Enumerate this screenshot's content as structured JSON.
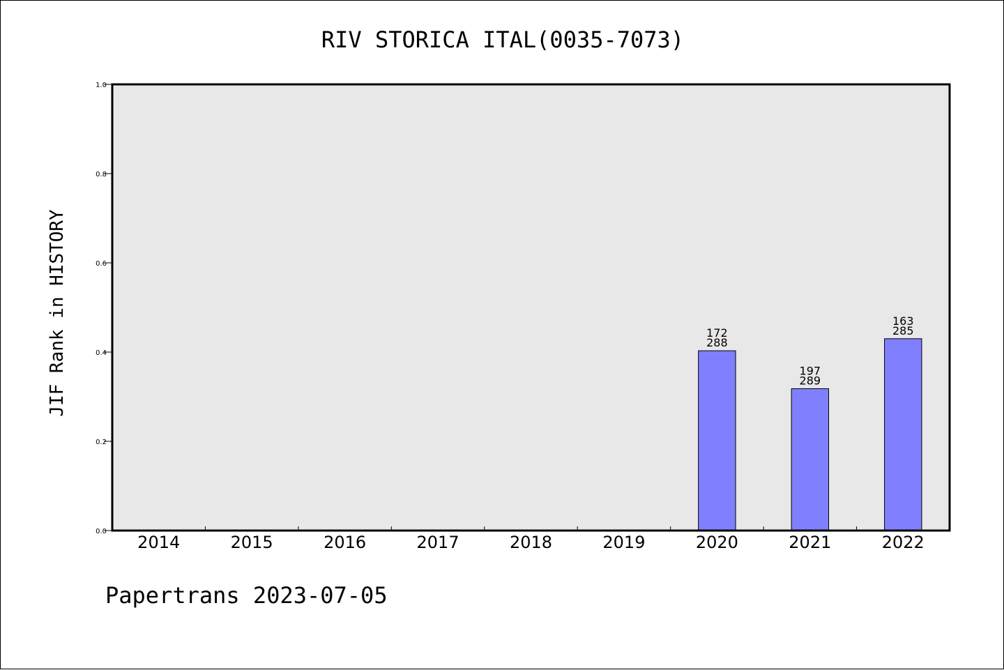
{
  "chart_data": {
    "type": "bar",
    "title": "RIV STORICA ITAL(0035-7073)",
    "ylabel": "JIF Rank in HISTORY",
    "xlabel": "",
    "footer": "Papertrans 2023-07-05",
    "categories": [
      "2014",
      "2015",
      "2016",
      "2017",
      "2018",
      "2019",
      "2020",
      "2021",
      "2022"
    ],
    "values": [
      null,
      null,
      null,
      null,
      null,
      null,
      0.403,
      0.318,
      0.43
    ],
    "rank_labels": [
      null,
      null,
      null,
      null,
      null,
      null,
      {
        "rank": "172",
        "total": "288"
      },
      {
        "rank": "197",
        "total": "289"
      },
      {
        "rank": "163",
        "total": "285"
      }
    ],
    "ylim": [
      0,
      1.0
    ],
    "yticks": [
      "0.0",
      "0.2",
      "0.4",
      "0.6",
      "0.8",
      "1.0"
    ],
    "ytick_values": [
      0,
      0.2,
      0.4,
      0.6,
      0.8,
      1.0
    ],
    "grid": false,
    "colors": {
      "bar_fill": "#8080ff",
      "bar_stroke": "#000000",
      "plot_bg": "#e8e8e8",
      "page_bg": "#ffffff"
    }
  }
}
